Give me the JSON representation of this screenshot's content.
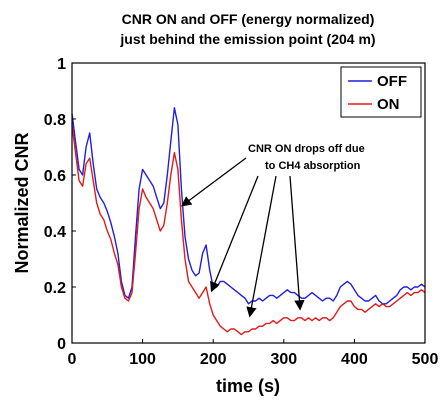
{
  "chart_data": {
    "type": "line",
    "title_line1": "CNR ON and OFF (energy normalized)",
    "title_line2": "just behind the emission point (204 m)",
    "xlabel": "time (s)",
    "ylabel": "Normalized CNR",
    "xlim": [
      0,
      500
    ],
    "ylim": [
      0,
      1
    ],
    "xticks": [
      "0",
      "100",
      "200",
      "300",
      "400",
      "500"
    ],
    "yticks": [
      "0",
      "0.2",
      "0.4",
      "0.6",
      "0.8",
      "1"
    ],
    "legend_position": "top-right",
    "annotation_line1": "CNR ON drops off due",
    "annotation_line2": "to CH4 absorption",
    "series": [
      {
        "name": "OFF",
        "color": "#1f1fdd",
        "x": [
          0,
          5,
          10,
          15,
          20,
          25,
          30,
          35,
          40,
          45,
          50,
          55,
          60,
          65,
          70,
          75,
          80,
          85,
          90,
          95,
          100,
          105,
          110,
          115,
          120,
          125,
          130,
          135,
          140,
          145,
          150,
          155,
          160,
          165,
          170,
          175,
          180,
          185,
          190,
          195,
          200,
          205,
          210,
          215,
          220,
          225,
          230,
          235,
          240,
          245,
          250,
          255,
          260,
          265,
          270,
          275,
          280,
          285,
          290,
          295,
          300,
          305,
          310,
          315,
          320,
          325,
          330,
          335,
          340,
          345,
          350,
          355,
          360,
          365,
          370,
          375,
          380,
          385,
          390,
          395,
          400,
          405,
          410,
          415,
          420,
          425,
          430,
          435,
          440,
          445,
          450,
          455,
          460,
          465,
          470,
          475,
          480,
          485,
          490,
          495,
          500
        ],
        "values": [
          0.82,
          0.72,
          0.62,
          0.6,
          0.7,
          0.75,
          0.64,
          0.55,
          0.52,
          0.5,
          0.47,
          0.43,
          0.38,
          0.32,
          0.22,
          0.17,
          0.16,
          0.2,
          0.38,
          0.55,
          0.62,
          0.6,
          0.58,
          0.56,
          0.52,
          0.48,
          0.5,
          0.6,
          0.72,
          0.84,
          0.78,
          0.55,
          0.38,
          0.3,
          0.26,
          0.24,
          0.25,
          0.32,
          0.35,
          0.26,
          0.2,
          0.2,
          0.22,
          0.22,
          0.21,
          0.2,
          0.19,
          0.18,
          0.17,
          0.16,
          0.14,
          0.15,
          0.15,
          0.16,
          0.15,
          0.16,
          0.17,
          0.17,
          0.16,
          0.17,
          0.18,
          0.19,
          0.18,
          0.18,
          0.17,
          0.16,
          0.16,
          0.17,
          0.18,
          0.17,
          0.16,
          0.15,
          0.16,
          0.16,
          0.15,
          0.17,
          0.2,
          0.21,
          0.22,
          0.21,
          0.19,
          0.17,
          0.16,
          0.15,
          0.15,
          0.16,
          0.17,
          0.15,
          0.14,
          0.14,
          0.15,
          0.16,
          0.17,
          0.19,
          0.2,
          0.2,
          0.19,
          0.2,
          0.2,
          0.21,
          0.2
        ]
      },
      {
        "name": "ON",
        "color": "#e01b1b",
        "x": [
          0,
          5,
          10,
          15,
          20,
          25,
          30,
          35,
          40,
          45,
          50,
          55,
          60,
          65,
          70,
          75,
          80,
          85,
          90,
          95,
          100,
          105,
          110,
          115,
          120,
          125,
          130,
          135,
          140,
          145,
          150,
          155,
          160,
          165,
          170,
          175,
          180,
          185,
          190,
          195,
          200,
          205,
          210,
          215,
          220,
          225,
          230,
          235,
          240,
          245,
          250,
          255,
          260,
          265,
          270,
          275,
          280,
          285,
          290,
          295,
          300,
          305,
          310,
          315,
          320,
          325,
          330,
          335,
          340,
          345,
          350,
          355,
          360,
          365,
          370,
          375,
          380,
          385,
          390,
          395,
          400,
          405,
          410,
          415,
          420,
          425,
          430,
          435,
          440,
          445,
          450,
          455,
          460,
          465,
          470,
          475,
          480,
          485,
          490,
          495,
          500
        ],
        "values": [
          0.78,
          0.68,
          0.58,
          0.56,
          0.64,
          0.66,
          0.58,
          0.5,
          0.46,
          0.44,
          0.4,
          0.37,
          0.32,
          0.28,
          0.2,
          0.16,
          0.15,
          0.18,
          0.32,
          0.48,
          0.55,
          0.52,
          0.5,
          0.48,
          0.44,
          0.4,
          0.42,
          0.5,
          0.6,
          0.68,
          0.62,
          0.44,
          0.3,
          0.22,
          0.2,
          0.18,
          0.16,
          0.18,
          0.2,
          0.14,
          0.1,
          0.08,
          0.06,
          0.05,
          0.04,
          0.05,
          0.05,
          0.04,
          0.03,
          0.04,
          0.04,
          0.05,
          0.05,
          0.06,
          0.06,
          0.07,
          0.07,
          0.08,
          0.07,
          0.08,
          0.09,
          0.09,
          0.08,
          0.08,
          0.09,
          0.09,
          0.08,
          0.09,
          0.08,
          0.09,
          0.08,
          0.09,
          0.09,
          0.08,
          0.09,
          0.11,
          0.13,
          0.14,
          0.15,
          0.15,
          0.13,
          0.12,
          0.12,
          0.11,
          0.12,
          0.13,
          0.14,
          0.13,
          0.14,
          0.13,
          0.13,
          0.14,
          0.15,
          0.16,
          0.17,
          0.18,
          0.17,
          0.18,
          0.18,
          0.19,
          0.18
        ]
      }
    ]
  }
}
